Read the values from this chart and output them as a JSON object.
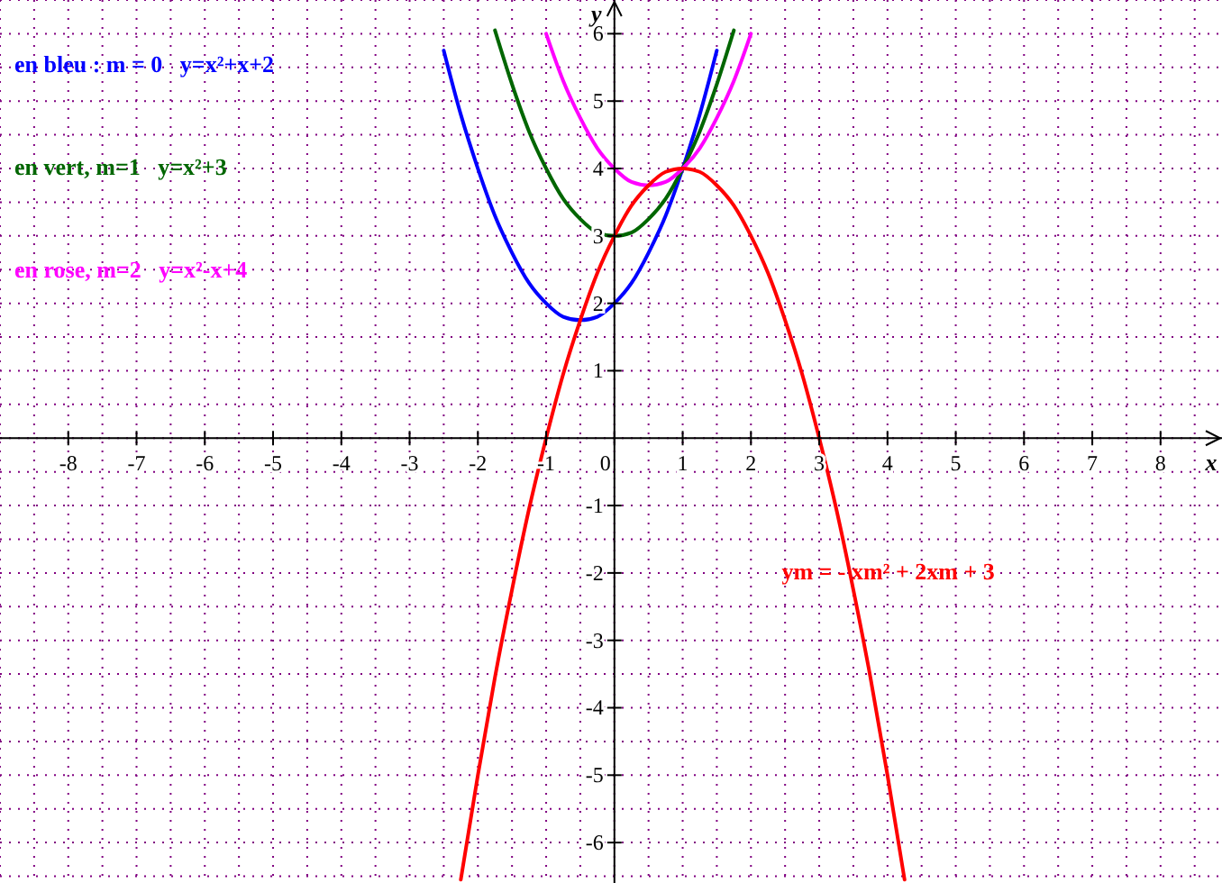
{
  "chart_data": {
    "type": "line",
    "xlabel": "x",
    "ylabel": "y",
    "xlim": [
      -9,
      8.9
    ],
    "ylim": [
      -6.6,
      6.5
    ],
    "xticks": [
      -8,
      -7,
      -6,
      -5,
      -4,
      -3,
      -2,
      -1,
      0,
      1,
      2,
      3,
      4,
      5,
      6,
      7,
      8
    ],
    "yticks": [
      -6,
      -5,
      -4,
      -3,
      -2,
      -1,
      1,
      2,
      3,
      4,
      5,
      6
    ],
    "grid": true,
    "legend": false,
    "line_style": "solid",
    "series": [
      {
        "name": "en bleu : m = 0   y=x²+x+2",
        "color": "#0000ff",
        "x": [
          -2.5,
          -2.25,
          -2,
          -1.75,
          -1.5,
          -1.25,
          -1,
          -0.75,
          -0.5,
          -0.25,
          0,
          0.25,
          0.5,
          0.75,
          1,
          1.25,
          1.5
        ],
        "values": [
          5.75,
          4.8,
          4,
          3.3,
          2.75,
          2.3,
          2,
          1.8,
          1.75,
          1.8,
          2,
          2.3,
          2.75,
          3.3,
          4,
          4.8,
          5.75
        ]
      },
      {
        "name": "en vert, m=1   y=x²+3",
        "color": "#006600",
        "x": [
          -1.75,
          -1.5,
          -1.25,
          -1,
          -0.75,
          -0.5,
          -0.25,
          0,
          0.25,
          0.5,
          0.75,
          1,
          1.25,
          1.5,
          1.75
        ],
        "values": [
          6.05,
          5.25,
          4.55,
          4,
          3.55,
          3.25,
          3.05,
          3,
          3.05,
          3.25,
          3.55,
          4,
          4.55,
          5.25,
          6.05
        ]
      },
      {
        "name": "en rose, m=2   y=x²-x+4",
        "color": "#ff00ff",
        "x": [
          -1,
          -0.75,
          -0.5,
          -0.25,
          0,
          0.25,
          0.5,
          0.75,
          1,
          1.25,
          1.5,
          1.75,
          2
        ],
        "values": [
          6,
          5.3,
          4.75,
          4.3,
          4,
          3.8,
          3.75,
          3.8,
          4,
          4.3,
          4.75,
          5.3,
          6
        ]
      },
      {
        "name": "ym = - xm² + 2xm + 3",
        "color": "#ff0000",
        "x": [
          -2.25,
          -2,
          -1.75,
          -1.5,
          -1.25,
          -1,
          -0.75,
          -0.5,
          -0.25,
          0,
          0.25,
          0.5,
          0.75,
          1,
          1.25,
          1.5,
          1.75,
          2,
          2.25,
          2.5,
          2.75,
          3,
          3.25,
          3.5,
          3.75,
          4,
          4.25
        ],
        "values": [
          -6.55,
          -5,
          -3.55,
          -2.25,
          -1.05,
          0,
          0.95,
          1.75,
          2.45,
          3,
          3.45,
          3.75,
          3.95,
          4,
          3.95,
          3.75,
          3.45,
          3,
          2.45,
          1.75,
          0.95,
          0,
          -1.05,
          -2.25,
          -3.55,
          -5,
          -6.55
        ]
      }
    ]
  }
}
